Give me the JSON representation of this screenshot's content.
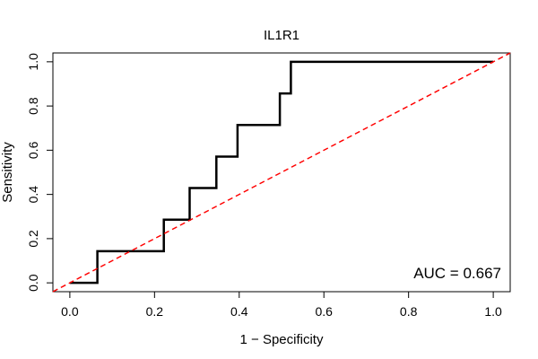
{
  "chart_data": {
    "type": "line",
    "title": "IL1R1",
    "xlabel": "1 − Specificity",
    "ylabel": "Sensitivity",
    "xlim": [
      -0.04,
      1.04
    ],
    "ylim": [
      -0.04,
      1.04
    ],
    "x_ticks": [
      "0.0",
      "0.2",
      "0.4",
      "0.6",
      "0.8",
      "1.0"
    ],
    "y_ticks": [
      "0.0",
      "0.2",
      "0.4",
      "0.6",
      "0.8",
      "1.0"
    ],
    "grid": false,
    "series": [
      {
        "type": "step",
        "color": "#000000",
        "x": [
          0.0,
          0.065,
          0.065,
          0.222,
          0.222,
          0.283,
          0.283,
          0.346,
          0.346,
          0.396,
          0.396,
          0.496,
          0.496,
          0.522,
          0.522,
          1.0
        ],
        "y": [
          0.0,
          0.0,
          0.143,
          0.143,
          0.286,
          0.286,
          0.429,
          0.429,
          0.571,
          0.571,
          0.714,
          0.714,
          0.857,
          0.857,
          1.0,
          1.0
        ]
      },
      {
        "type": "reference",
        "style": "dashed",
        "color": "#ff0000",
        "x": [
          -0.04,
          1.04
        ],
        "y": [
          -0.04,
          1.04
        ]
      }
    ],
    "annotation": "AUC = 0.667"
  }
}
